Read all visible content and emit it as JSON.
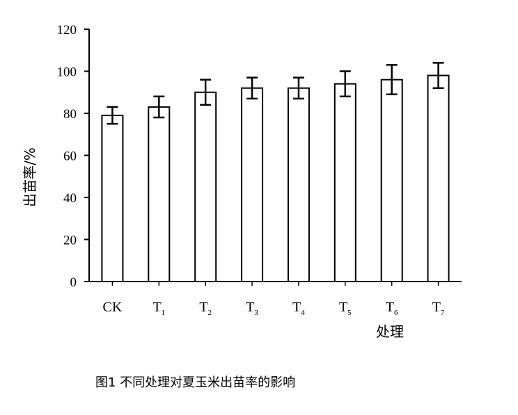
{
  "chart_data": {
    "type": "bar",
    "categories": [
      {
        "main": "CK",
        "sub": ""
      },
      {
        "main": "T",
        "sub": "1"
      },
      {
        "main": "T",
        "sub": "2"
      },
      {
        "main": "T",
        "sub": "3"
      },
      {
        "main": "T",
        "sub": "4"
      },
      {
        "main": "T",
        "sub": "5"
      },
      {
        "main": "T",
        "sub": "6"
      },
      {
        "main": "T",
        "sub": "7"
      }
    ],
    "values": [
      79,
      83,
      90,
      92,
      92,
      94,
      96,
      98
    ],
    "error": [
      4,
      5,
      6,
      5,
      5,
      6,
      7,
      6
    ],
    "ylim": [
      0,
      120
    ],
    "yticks": [
      0,
      20,
      40,
      60,
      80,
      100,
      120
    ],
    "xlabel": "处理",
    "ylabel": "出苗率/%",
    "bar_fill": "#ffffff",
    "stroke": "#000000"
  },
  "caption": "图1  不同处理对夏玉米出苗率的影响"
}
